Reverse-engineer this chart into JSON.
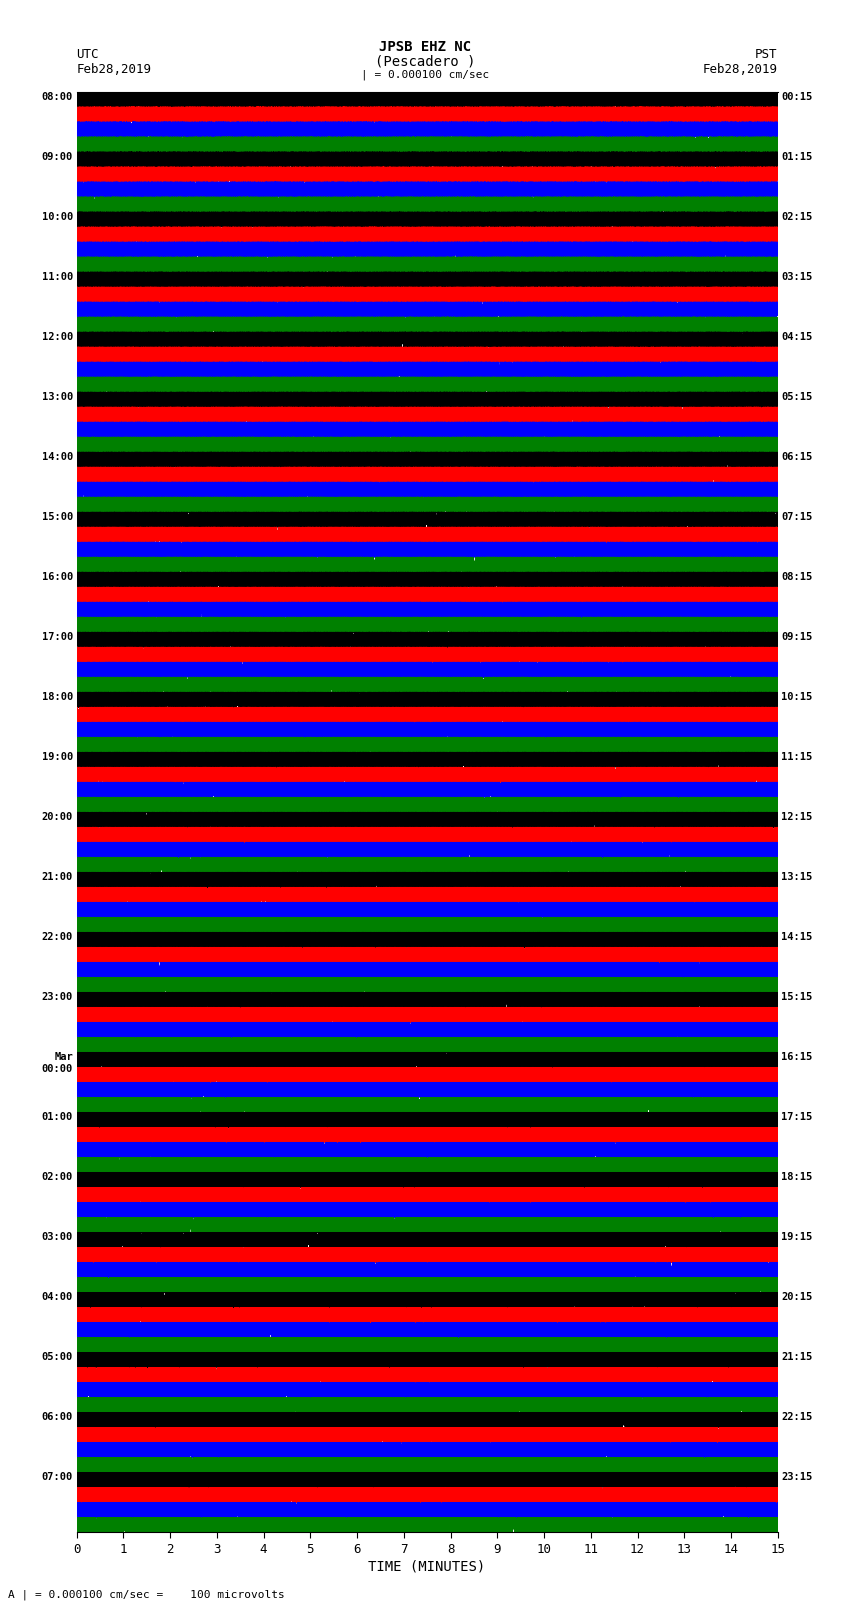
{
  "title_line1": "JPSB EHZ NC",
  "title_line2": "(Pescadero )",
  "title_line3": "| = 0.000100 cm/sec",
  "left_label_line1": "UTC",
  "left_label_line2": "Feb28,2019",
  "right_label_line1": "PST",
  "right_label_line2": "Feb28,2019",
  "bottom_label": "TIME (MINUTES)",
  "bottom_note": "A | = 0.000100 cm/sec =    100 microvolts",
  "utc_times": [
    "08:00",
    "09:00",
    "10:00",
    "11:00",
    "12:00",
    "13:00",
    "14:00",
    "15:00",
    "16:00",
    "17:00",
    "18:00",
    "19:00",
    "20:00",
    "21:00",
    "22:00",
    "23:00",
    "Mar\n00:00",
    "01:00",
    "02:00",
    "03:00",
    "04:00",
    "05:00",
    "06:00",
    "07:00"
  ],
  "pst_times": [
    "00:15",
    "01:15",
    "02:15",
    "03:15",
    "04:15",
    "05:15",
    "06:15",
    "07:15",
    "08:15",
    "09:15",
    "10:15",
    "11:15",
    "12:15",
    "13:15",
    "14:15",
    "15:15",
    "16:15",
    "17:15",
    "18:15",
    "19:15",
    "20:15",
    "21:15",
    "22:15",
    "23:15"
  ],
  "num_rows": 24,
  "traces_per_row": 4,
  "trace_color_order": [
    "black",
    "red",
    "blue",
    "green"
  ],
  "bg_color": "white",
  "xlabel_ticks": [
    0,
    1,
    2,
    3,
    4,
    5,
    6,
    7,
    8,
    9,
    10,
    11,
    12,
    13,
    14,
    15
  ],
  "xmin": 0,
  "xmax": 15,
  "fig_width": 8.5,
  "fig_height": 16.13,
  "dpi": 100
}
